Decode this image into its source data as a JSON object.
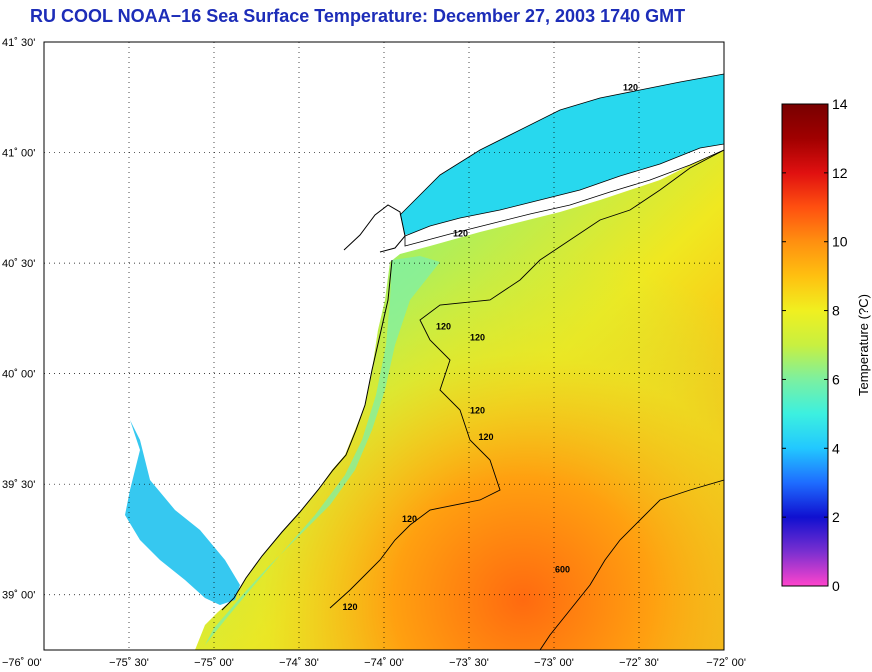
{
  "title": "RU COOL  NOAA−16  Sea Surface Temperature:  December 27, 2003 1740 GMT",
  "map": {
    "lat_ticks": [
      {
        "lat": 41.5,
        "label": "41˚ 30'"
      },
      {
        "lat": 41.0,
        "label": "41˚ 00'"
      },
      {
        "lat": 40.5,
        "label": "40˚ 30'"
      },
      {
        "lat": 40.0,
        "label": "40˚ 00'"
      },
      {
        "lat": 39.5,
        "label": "39˚ 30'"
      },
      {
        "lat": 39.0,
        "label": "39˚ 00'"
      }
    ],
    "lon_ticks": [
      {
        "lon": -76.0,
        "label": "−76˚ 00'"
      },
      {
        "lon": -75.5,
        "label": "−75˚ 30'"
      },
      {
        "lon": -75.0,
        "label": "−75˚ 00'"
      },
      {
        "lon": -74.5,
        "label": "−74˚ 30'"
      },
      {
        "lon": -74.0,
        "label": "−74˚ 00'"
      },
      {
        "lon": -73.5,
        "label": "−73˚ 30'"
      },
      {
        "lon": -73.0,
        "label": "−73˚ 00'"
      },
      {
        "lon": -72.5,
        "label": "−72˚ 30'"
      },
      {
        "lon": -72.0,
        "label": "−72˚ 00'"
      }
    ],
    "lon_range": [
      -76.0,
      -72.0
    ],
    "lat_range": [
      38.75,
      41.5
    ],
    "grid": "dotted",
    "contour_labels": [
      {
        "text": "120",
        "lon": -72.55,
        "lat": 41.28
      },
      {
        "text": "120",
        "lon": -73.55,
        "lat": 40.62
      },
      {
        "text": "120",
        "lon": -73.65,
        "lat": 40.2
      },
      {
        "text": "120",
        "lon": -73.45,
        "lat": 40.15
      },
      {
        "text": "120",
        "lon": -73.45,
        "lat": 39.82
      },
      {
        "text": "120",
        "lon": -73.4,
        "lat": 39.7
      },
      {
        "text": "120",
        "lon": -73.85,
        "lat": 39.33
      },
      {
        "text": "120",
        "lon": -74.2,
        "lat": 38.93
      },
      {
        "text": "600",
        "lon": -72.95,
        "lat": 39.1
      }
    ]
  },
  "colorbar": {
    "title": "Temperature (?C)",
    "min": 0,
    "max": 14,
    "ticks": [
      {
        "value": 0,
        "label": "0"
      },
      {
        "value": 2,
        "label": "2"
      },
      {
        "value": 4,
        "label": "4"
      },
      {
        "value": 6,
        "label": "6"
      },
      {
        "value": 8,
        "label": "8"
      },
      {
        "value": 10,
        "label": "10"
      },
      {
        "value": 12,
        "label": "12"
      },
      {
        "value": 14,
        "label": "14"
      }
    ],
    "colors": [
      "#ff44cc",
      "#7a2fd0",
      "#1010d0",
      "#1e6cff",
      "#22c8ff",
      "#3cf0e0",
      "#7cf0a0",
      "#c8f040",
      "#f0f020",
      "#ffc010",
      "#ff9010",
      "#ff5010",
      "#e01010",
      "#a00000",
      "#780000"
    ]
  }
}
